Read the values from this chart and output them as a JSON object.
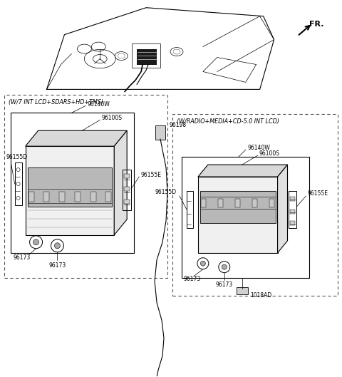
{
  "bg_color": "#ffffff",
  "fr_label": "FR.",
  "left_box_label": "(W/7 INT LCD+SDARS+HD+TMS)",
  "right_box_label": "(W/RADIO+MEDIA+CD-5.0 INT LCD)",
  "figsize": [
    4.8,
    5.29
  ],
  "dpi": 100,
  "parts_color": "#000000",
  "dash_color": "#888888",
  "label_fontsize": 5.5,
  "title_fontsize": 5.8
}
